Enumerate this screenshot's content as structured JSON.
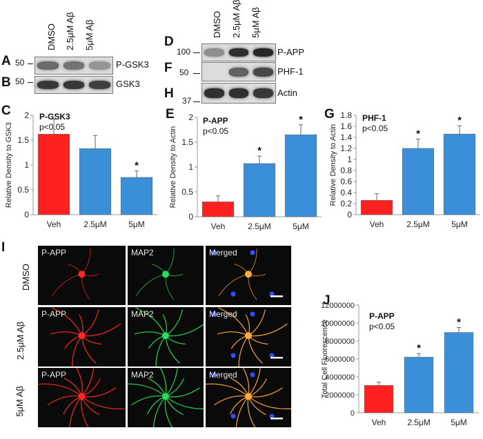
{
  "panels": {
    "A": "A",
    "B": "B",
    "C": "C",
    "D": "D",
    "E": "E",
    "F": "F",
    "G": "G",
    "H": "H",
    "I": "I",
    "J": "J"
  },
  "blots_left": {
    "lanes": [
      "DMSO",
      "2.5μM Aβ",
      "5μM Aβ"
    ],
    "rows": [
      {
        "marker": "50",
        "name": "P-GSK3",
        "intensity": [
          0.55,
          0.5,
          0.3
        ]
      },
      {
        "marker": "50",
        "name": "GSK3",
        "intensity": [
          0.85,
          0.85,
          0.8
        ]
      }
    ]
  },
  "blots_right": {
    "lanes": [
      "DMSO",
      "2.5μM Aβ",
      "5μM Aβ"
    ],
    "rows": [
      {
        "marker": "100",
        "name": "P-APP",
        "intensity": [
          0.35,
          0.9,
          0.95
        ]
      },
      {
        "marker": "50",
        "name": "PHF-1",
        "intensity": [
          0.0,
          0.6,
          0.75
        ]
      },
      {
        "marker": "37",
        "name": "Actin",
        "intensity": [
          0.9,
          0.9,
          0.85
        ]
      }
    ]
  },
  "chart_data": [
    {
      "type": "bar",
      "title": "P-GSK3",
      "subtitle": "p<0.05",
      "ylabel": "Relative Density to GSK3",
      "categories": [
        "Veh",
        "2.5μM",
        "5μM"
      ],
      "values": [
        1.62,
        1.33,
        0.75
      ],
      "errors": [
        0.3,
        0.26,
        0.13
      ],
      "significant": [
        false,
        false,
        true
      ],
      "ylim": [
        0,
        2
      ],
      "yticks": [
        0,
        0.5,
        1,
        1.5,
        2
      ],
      "ytick_labels": [
        "0",
        "0.5",
        "1",
        "1.5",
        "2"
      ],
      "colors": [
        "#ff2020",
        "#3a8fd8",
        "#3a8fd8"
      ]
    },
    {
      "type": "bar",
      "title": "P-APP",
      "subtitle": "p<0.05",
      "ylabel": "Relative Density to Actin",
      "categories": [
        "Veh",
        "2.5μM",
        "5μM"
      ],
      "values": [
        0.3,
        1.07,
        1.65
      ],
      "errors": [
        0.12,
        0.15,
        0.2
      ],
      "significant": [
        false,
        true,
        true
      ],
      "ylim": [
        0,
        2
      ],
      "yticks": [
        0,
        0.5,
        1,
        1.5,
        2
      ],
      "ytick_labels": [
        "0",
        "0.5",
        "1",
        "1.5",
        "2"
      ],
      "colors": [
        "#ff2020",
        "#3a8fd8",
        "#3a8fd8"
      ]
    },
    {
      "type": "bar",
      "title": "PHF-1",
      "subtitle": "p<0.05",
      "ylabel": "Relative Density to Actin",
      "categories": [
        "Veh",
        "2.5μM",
        "5μM"
      ],
      "values": [
        0.26,
        1.2,
        1.46
      ],
      "errors": [
        0.12,
        0.17,
        0.15
      ],
      "significant": [
        false,
        true,
        true
      ],
      "ylim": [
        0,
        1.8
      ],
      "yticks": [
        0,
        0.2,
        0.4,
        0.6,
        0.8,
        1,
        1.2,
        1.4,
        1.6,
        1.8
      ],
      "ytick_labels": [
        "0",
        "0.2",
        "0.4",
        "0.6",
        "0.8",
        "1",
        "1.2",
        "1.4",
        "1.6",
        "1.8"
      ],
      "colors": [
        "#ff2020",
        "#3a8fd8",
        "#3a8fd8"
      ]
    },
    {
      "type": "bar",
      "title": "P-APP",
      "subtitle": "p<0.05",
      "ylabel": "Total Cell Fluorescence",
      "categories": [
        "Veh",
        "2.5μM",
        "5μM"
      ],
      "values": [
        3050000,
        6200000,
        8950000
      ],
      "errors": [
        350000,
        400000,
        550000
      ],
      "significant": [
        false,
        true,
        true
      ],
      "ylim": [
        0,
        12000000
      ],
      "yticks": [
        0,
        2000000,
        4000000,
        6000000,
        8000000,
        10000000,
        12000000
      ],
      "ytick_labels": [
        "0",
        "2000000",
        "4000000",
        "6000000",
        "8000000",
        "10000000",
        "12000000"
      ],
      "colors": [
        "#ff2020",
        "#3a8fd8",
        "#3a8fd8"
      ]
    }
  ],
  "star": "*",
  "micro": {
    "rows": [
      "DMSO",
      "2.5μM Aβ",
      "5μM Aβ"
    ],
    "cols": [
      "P-APP",
      "MAP2",
      "Merged"
    ]
  }
}
